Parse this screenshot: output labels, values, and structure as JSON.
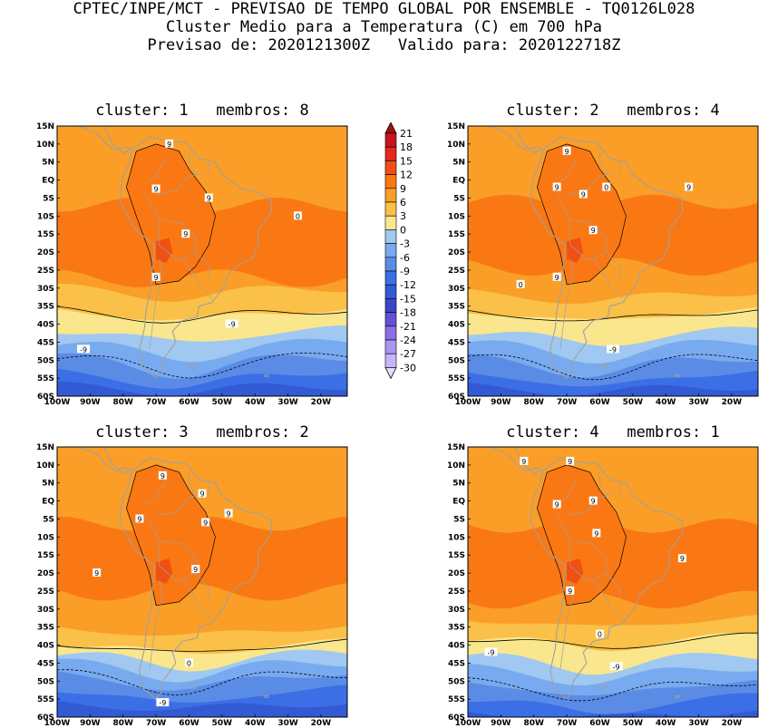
{
  "title": {
    "line1": "CPTEC/INPE/MCT - PREVISAO DE TEMPO GLOBAL POR ENSEMBLE - TQ0126L028",
    "line2": "Cluster Medio para a Temperatura (C) em 700 hPa",
    "line3": "Previsao de: 2020121300Z   Valido para: 2020122718Z"
  },
  "axes": {
    "lat_labels": [
      "15N",
      "10N",
      "5N",
      "EQ",
      "5S",
      "10S",
      "15S",
      "20S",
      "25S",
      "30S",
      "35S",
      "40S",
      "45S",
      "50S",
      "55S",
      "60S"
    ],
    "lon_labels": [
      "100W",
      "90W",
      "80W",
      "70W",
      "60W",
      "50W",
      "40W",
      "30W",
      "20W"
    ]
  },
  "colorbar": {
    "levels": [
      "21",
      "18",
      "15",
      "12",
      "9",
      "6",
      "3",
      "0",
      "-3",
      "-6",
      "-9",
      "-12",
      "-15",
      "-18",
      "-21",
      "-24",
      "-27",
      "-30"
    ],
    "colors": [
      "#a01010",
      "#c8141e",
      "#e6281e",
      "#f05014",
      "#fa7814",
      "#fa9e28",
      "#fac048",
      "#fae68c",
      "#a0c8f0",
      "#78aaf0",
      "#5a8ce6",
      "#3c6ee6",
      "#325ad2",
      "#3c46c8",
      "#6450d2",
      "#8c6ee6",
      "#aa96f0",
      "#c8b4fa",
      "#e6dcfa"
    ]
  },
  "panels": [
    {
      "title": "cluster: 1   membros: 8",
      "contour_labels": [
        "9",
        "9",
        "9",
        "9",
        "9",
        "0",
        "-9",
        "-9"
      ],
      "bands": {
        "b9": 27.3,
        "b6": 24.9,
        "b3": 29.9,
        "b0": 36.0,
        "bm3": 41.5,
        "bm6": 45.2,
        "bm9": 49.1,
        "bm12": 53.1
      }
    },
    {
      "title": "cluster: 2   membros: 4",
      "contour_labels": [
        "9",
        "9",
        "9",
        "9",
        "9",
        "9",
        "0",
        "0",
        "-9"
      ],
      "bands": {
        "b9": 24.1,
        "b6": 25.0,
        "b3": 31.1,
        "b0": 36.3,
        "bm3": 41.9,
        "bm6": 45.3,
        "bm9": 49.3,
        "bm12": 53.3
      }
    },
    {
      "title": "cluster: 3   membros: 2",
      "contour_labels": [
        "9",
        "9",
        "9",
        "9",
        "9",
        "9",
        "9",
        "0",
        "-9"
      ],
      "bands": {
        "b9": 25.2,
        "b6": 27.3,
        "b3": 35.0,
        "b0": 39.4,
        "bm3": 42.4,
        "bm6": 44.8,
        "bm9": 47.9,
        "bm12": 52.1
      }
    },
    {
      "title": "cluster: 4   membros: 1",
      "contour_labels": [
        "9",
        "9",
        "9",
        "9",
        "9",
        "9",
        "9",
        "0",
        "-9",
        "-9"
      ],
      "bands": {
        "b9": 27.4,
        "b6": 29.0,
        "b3": 32.6,
        "b0": 37.8,
        "bm3": 43.1,
        "bm6": 46.2,
        "bm9": 50.1,
        "bm12": 54.5
      }
    }
  ]
}
